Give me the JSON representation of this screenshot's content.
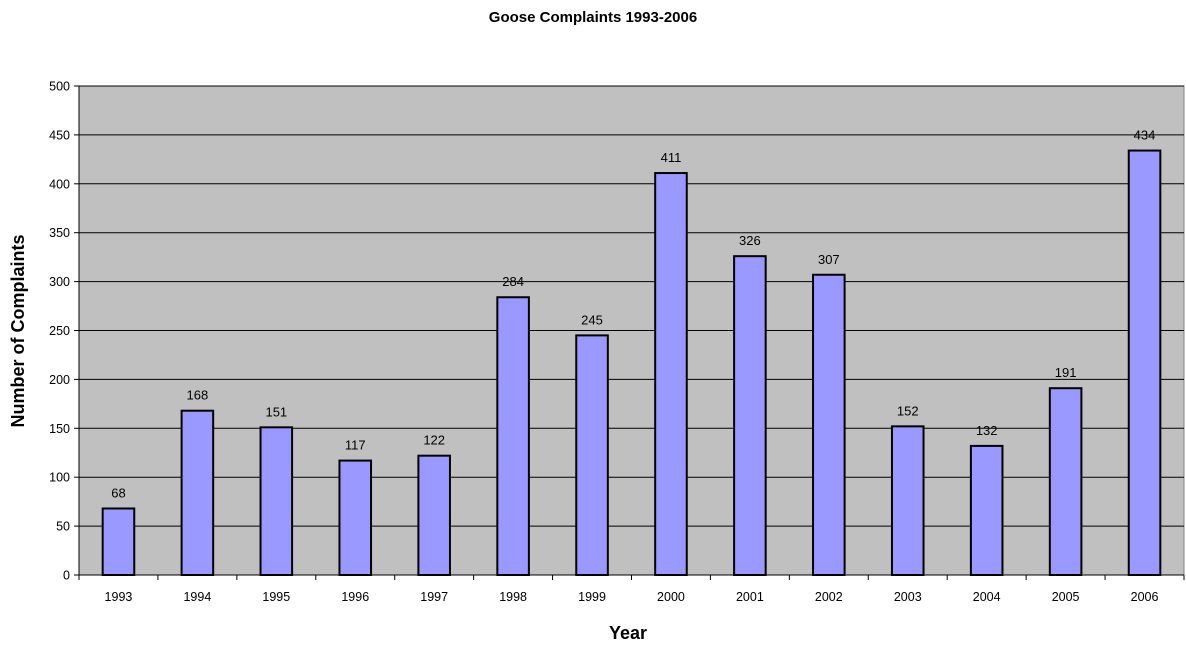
{
  "chart_data": {
    "type": "bar",
    "title": "Goose Complaints 1993-2006",
    "xlabel": "Year",
    "ylabel": "Number of Complaints",
    "categories": [
      "1993",
      "1994",
      "1995",
      "1996",
      "1997",
      "1998",
      "1999",
      "2000",
      "2001",
      "2002",
      "2003",
      "2004",
      "2005",
      "2006"
    ],
    "values": [
      68,
      168,
      151,
      117,
      122,
      284,
      245,
      411,
      326,
      307,
      152,
      132,
      191,
      434
    ],
    "ylim": [
      0,
      500
    ],
    "yticks": [
      0,
      50,
      100,
      150,
      200,
      250,
      300,
      350,
      400,
      450,
      500
    ],
    "grid": true,
    "legend": "none",
    "data_labels": true,
    "colors": {
      "bar_fill": "#9999ff",
      "bar_stroke": "#000000",
      "plot_background": "#c0c0c0",
      "gridline": "#000000",
      "page_background": "#ffffff"
    }
  }
}
